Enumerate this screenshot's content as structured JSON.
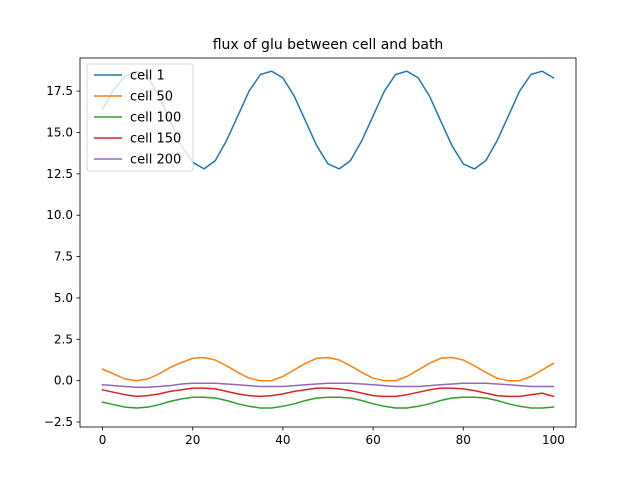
{
  "chart_data": {
    "type": "line",
    "title": "flux of glu between cell and bath",
    "xlabel": "",
    "ylabel": "",
    "xlim": [
      -5,
      105
    ],
    "ylim": [
      -2.8,
      19.5
    ],
    "x_ticks": [
      0,
      20,
      40,
      60,
      80,
      100
    ],
    "x_tick_labels": [
      "0",
      "20",
      "40",
      "60",
      "80",
      "100"
    ],
    "y_ticks": [
      -2.5,
      0,
      2.5,
      5,
      7.5,
      10,
      12.5,
      15,
      17.5
    ],
    "y_tick_labels": [
      "−2.5",
      "0.0",
      "2.5",
      "5.0",
      "7.5",
      "10.0",
      "12.5",
      "15.0",
      "17.5"
    ],
    "grid": false,
    "legend_position": "upper-left",
    "x": [
      0,
      2.5,
      5,
      7.5,
      10,
      12.5,
      15,
      17.5,
      20,
      22.5,
      25,
      27.5,
      30,
      32.5,
      35,
      37.5,
      40,
      42.5,
      45,
      47.5,
      50,
      52.5,
      55,
      57.5,
      60,
      62.5,
      65,
      67.5,
      70,
      72.5,
      75,
      77.5,
      80,
      82.5,
      85,
      87.5,
      90,
      92.5,
      95,
      97.5,
      100
    ],
    "series": [
      {
        "name": "cell 1",
        "color": "#1f77b4",
        "values": [
          16.4,
          17.6,
          18.4,
          18.7,
          18.4,
          17.2,
          15.7,
          14.2,
          13.2,
          12.8,
          13.3,
          14.5,
          16.0,
          17.5,
          18.5,
          18.7,
          18.3,
          17.2,
          15.7,
          14.2,
          13.1,
          12.8,
          13.3,
          14.5,
          16.0,
          17.5,
          18.5,
          18.7,
          18.3,
          17.2,
          15.7,
          14.2,
          13.1,
          12.8,
          13.3,
          14.5,
          16.0,
          17.5,
          18.5,
          18.7,
          18.3
        ]
      },
      {
        "name": "cell 50",
        "color": "#ff7f0e",
        "values": [
          0.7,
          0.4,
          0.1,
          -0.0,
          0.1,
          0.4,
          0.8,
          1.1,
          1.35,
          1.4,
          1.25,
          0.9,
          0.5,
          0.15,
          -0.0,
          0.0,
          0.25,
          0.65,
          1.05,
          1.35,
          1.4,
          1.25,
          0.9,
          0.5,
          0.15,
          -0.0,
          0.0,
          0.25,
          0.65,
          1.05,
          1.35,
          1.4,
          1.25,
          0.9,
          0.5,
          0.15,
          -0.0,
          0.0,
          0.25,
          0.65,
          1.05
        ]
      },
      {
        "name": "cell 100",
        "color": "#2ca02c",
        "values": [
          -1.3,
          -1.45,
          -1.6,
          -1.65,
          -1.6,
          -1.45,
          -1.25,
          -1.1,
          -1.0,
          -1.0,
          -1.05,
          -1.2,
          -1.4,
          -1.55,
          -1.65,
          -1.65,
          -1.55,
          -1.4,
          -1.2,
          -1.05,
          -1.0,
          -1.0,
          -1.05,
          -1.2,
          -1.4,
          -1.55,
          -1.65,
          -1.65,
          -1.55,
          -1.4,
          -1.2,
          -1.05,
          -1.0,
          -1.0,
          -1.05,
          -1.2,
          -1.4,
          -1.55,
          -1.65,
          -1.65,
          -1.6
        ]
      },
      {
        "name": "cell 150",
        "color": "#d62728",
        "values": [
          -0.55,
          -0.7,
          -0.85,
          -0.95,
          -0.9,
          -0.8,
          -0.65,
          -0.55,
          -0.45,
          -0.45,
          -0.5,
          -0.65,
          -0.8,
          -0.9,
          -0.95,
          -0.9,
          -0.8,
          -0.65,
          -0.55,
          -0.45,
          -0.45,
          -0.5,
          -0.6,
          -0.75,
          -0.9,
          -0.95,
          -0.95,
          -0.85,
          -0.7,
          -0.55,
          -0.45,
          -0.45,
          -0.5,
          -0.6,
          -0.75,
          -0.9,
          -0.95,
          -0.95,
          -0.85,
          -0.75,
          -0.95
        ]
      },
      {
        "name": "cell 200",
        "color": "#9467bd",
        "values": [
          -0.25,
          -0.3,
          -0.35,
          -0.4,
          -0.4,
          -0.35,
          -0.3,
          -0.2,
          -0.15,
          -0.15,
          -0.15,
          -0.2,
          -0.25,
          -0.3,
          -0.35,
          -0.35,
          -0.35,
          -0.3,
          -0.25,
          -0.2,
          -0.15,
          -0.15,
          -0.15,
          -0.2,
          -0.25,
          -0.3,
          -0.35,
          -0.35,
          -0.35,
          -0.3,
          -0.25,
          -0.2,
          -0.15,
          -0.15,
          -0.15,
          -0.2,
          -0.25,
          -0.3,
          -0.35,
          -0.35,
          -0.35
        ]
      }
    ]
  }
}
